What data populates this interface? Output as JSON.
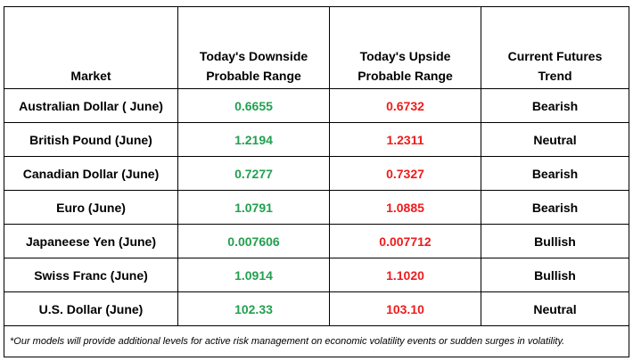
{
  "headers": {
    "market": "Market",
    "downside_line1": "Today's Downside",
    "downside_line2": "Probable Range",
    "upside_line1": "Today's Upside",
    "upside_line2": "Probable Range",
    "trend_line1": "Current Futures",
    "trend_line2": "Trend"
  },
  "rows": [
    {
      "market": "Australian Dollar ( June)",
      "downside": "0.6655",
      "upside": "0.6732",
      "trend": "Bearish"
    },
    {
      "market": "British Pound (June)",
      "downside": "1.2194",
      "upside": "1.2311",
      "trend": "Neutral"
    },
    {
      "market": "Canadian Dollar (June)",
      "downside": "0.7277",
      "upside": "0.7327",
      "trend": "Bearish"
    },
    {
      "market": "Euro (June)",
      "downside": "1.0791",
      "upside": "1.0885",
      "trend": "Bearish"
    },
    {
      "market": "Japaneese Yen (June)",
      "downside": "0.007606",
      "upside": "0.007712",
      "trend": "Bullish"
    },
    {
      "market": "Swiss Franc (June)",
      "downside": "1.0914",
      "upside": "1.1020",
      "trend": "Bullish"
    },
    {
      "market": "U.S. Dollar (June)",
      "downside": "102.33",
      "upside": "103.10",
      "trend": "Neutral"
    }
  ],
  "footnote": "*Our models will provide additional levels for active risk management on economic volatility events or sudden surges in volatility.",
  "colors": {
    "downside": "#22a050",
    "upside": "#ee1c1c"
  }
}
